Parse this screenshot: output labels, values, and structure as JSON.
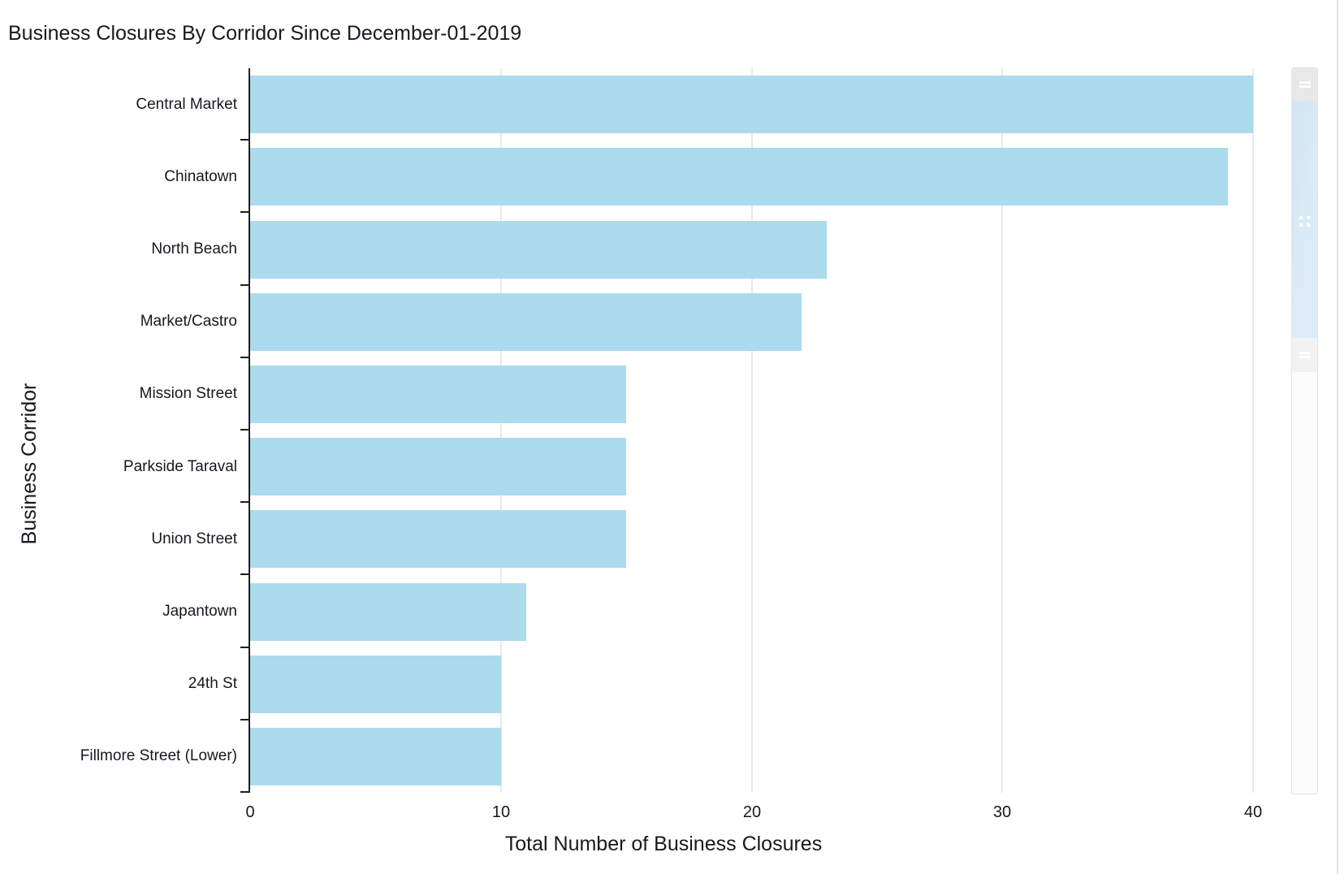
{
  "title": "Business Closures By Corridor Since December-01-2019",
  "chart_data": {
    "type": "bar",
    "orientation": "horizontal",
    "title": "Business Closures By Corridor Since December-01-2019",
    "categories": [
      "Central Market",
      "Chinatown",
      "North Beach",
      "Market/Castro",
      "Mission Street",
      "Parkside Taraval",
      "Union Street",
      "Japantown",
      "24th St",
      "Fillmore Street (Lower)"
    ],
    "values": [
      40,
      39,
      23,
      22,
      15,
      15,
      15,
      11,
      10,
      10
    ],
    "xlabel": "Total Number of Business Closures",
    "ylabel": "Business Corridor",
    "xlim": [
      0,
      40
    ],
    "x_ticks": [
      0,
      10,
      20,
      30,
      40
    ],
    "grid": true,
    "legend": false,
    "bar_color": "#ABDBED"
  },
  "colors": {
    "bar": "#ABDBED",
    "gridline": "#E9E9EB",
    "axis": "#1F1F1F",
    "text": "#16191F",
    "scrollbar_thumb": "#D8E8F5",
    "scrollbar_top_handle": "#E8E8E8",
    "scrollbar_bottom_handle": "#F2F2F2"
  },
  "scrollbar": {
    "orientation": "vertical",
    "icons": [
      "drag-handle-icon",
      "grip-dots-icon",
      "drag-handle-icon"
    ]
  }
}
